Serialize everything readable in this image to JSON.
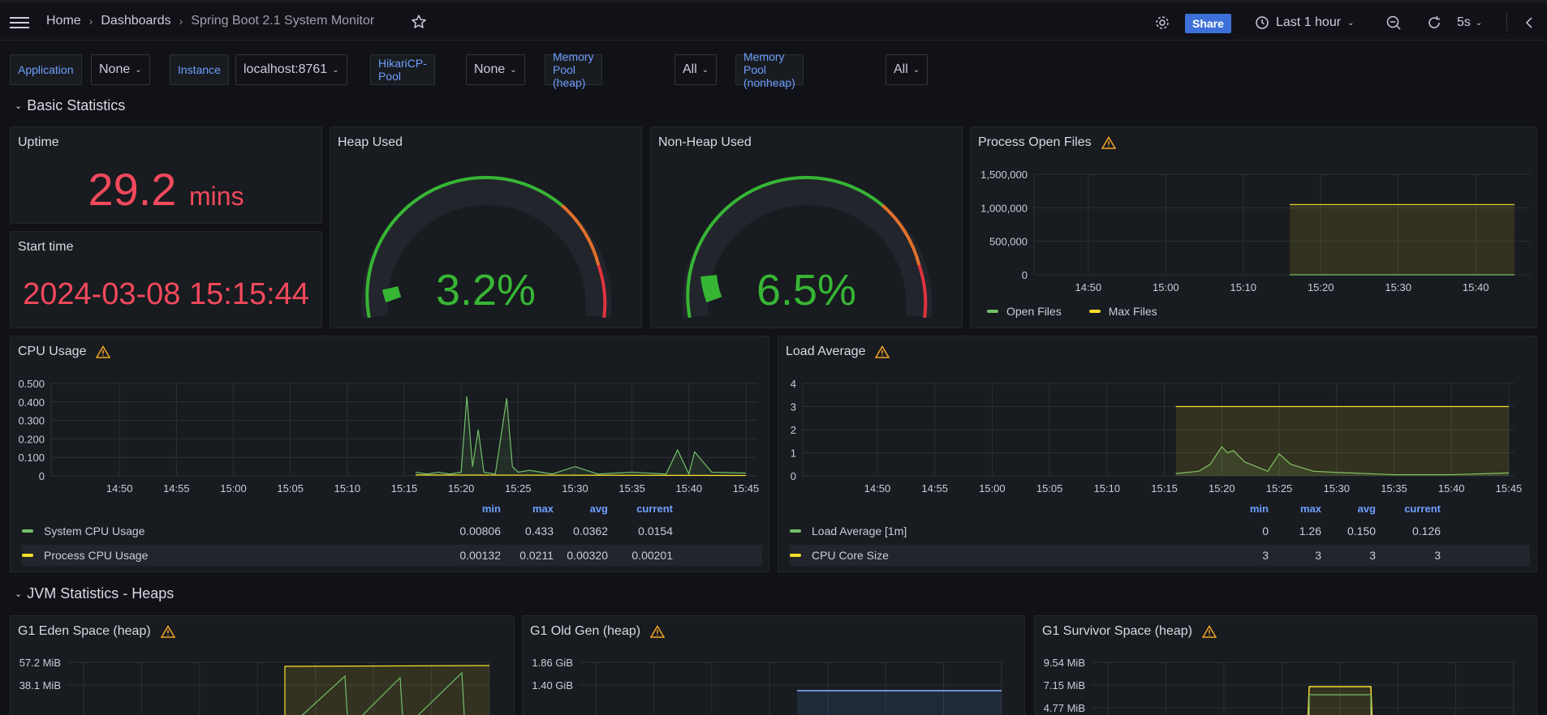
{
  "topbar": {
    "crumbs": [
      "Home",
      "Dashboards",
      "Spring Boot 2.1 System Monitor"
    ],
    "share_label": "Share",
    "time_range": "Last 1 hour",
    "refresh": "5s"
  },
  "variables": [
    {
      "label": "Application",
      "value": "None"
    },
    {
      "label": "Instance",
      "value": "localhost:8761"
    },
    {
      "label": "HikariCP-Pool",
      "value": "None"
    },
    {
      "label": "Memory Pool (heap)",
      "value": "All"
    },
    {
      "label": "Memory Pool (nonheap)",
      "value": "All"
    }
  ],
  "rows": {
    "basic": "Basic Statistics",
    "jvm": "JVM Statistics - Heaps"
  },
  "uptime": {
    "title": "Uptime",
    "value": "29.2",
    "unit": "mins"
  },
  "start_time": {
    "title": "Start time",
    "value": "2024-03-08 15:15:44"
  },
  "heap": {
    "title": "Heap Used",
    "value": "3.2%"
  },
  "nonheap": {
    "title": "Non-Heap Used",
    "value": "6.5%"
  },
  "open_files": {
    "title": "Process Open Files",
    "legend": [
      "Open Files",
      "Max Files"
    ]
  },
  "cpu": {
    "title": "CPU Usage",
    "headers": [
      "min",
      "max",
      "avg",
      "current"
    ],
    "rows": [
      {
        "name": "System CPU Usage",
        "color": "#73bf69",
        "values": [
          "0.00806",
          "0.433",
          "0.0362",
          "0.0154"
        ]
      },
      {
        "name": "Process CPU Usage",
        "color": "#fade2a",
        "values": [
          "0.00132",
          "0.0211",
          "0.00320",
          "0.00201"
        ]
      }
    ]
  },
  "load": {
    "title": "Load Average",
    "headers": [
      "min",
      "max",
      "avg",
      "current"
    ],
    "rows": [
      {
        "name": "Load Average [1m]",
        "color": "#73bf69",
        "values": [
          "0",
          "1.26",
          "0.150",
          "0.126"
        ]
      },
      {
        "name": "CPU Core Size",
        "color": "#fade2a",
        "values": [
          "3",
          "3",
          "3",
          "3"
        ]
      }
    ]
  },
  "heaps": {
    "eden": "G1 Eden Space (heap)",
    "old": "G1 Old Gen (heap)",
    "survivor": "G1 Survivor Space (heap)"
  },
  "chart_data": [
    {
      "type": "line",
      "title": "Process Open Files",
      "x_ticks": [
        "14:50",
        "15:00",
        "15:10",
        "15:20",
        "15:30",
        "15:40"
      ],
      "y_ticks": [
        "1,500,000",
        "1,000,000",
        "500,000",
        "0"
      ],
      "ylim": [
        0,
        1500000
      ],
      "series": [
        {
          "name": "Open Files",
          "x": [
            "15:16",
            "15:45"
          ],
          "y": [
            25,
            25
          ],
          "color": "#73bf69"
        },
        {
          "name": "Max Files",
          "x": [
            "15:16",
            "15:45"
          ],
          "y": [
            1048576,
            1048576
          ],
          "color": "#fade2a"
        }
      ]
    },
    {
      "type": "line",
      "title": "CPU Usage",
      "x_ticks": [
        "14:50",
        "14:55",
        "15:00",
        "15:05",
        "15:10",
        "15:15",
        "15:20",
        "15:25",
        "15:30",
        "15:35",
        "15:40",
        "15:45"
      ],
      "y_ticks": [
        "0.500",
        "0.400",
        "0.300",
        "0.200",
        "0.100",
        "0"
      ],
      "ylim": [
        0,
        0.5
      ],
      "series": [
        {
          "name": "System CPU Usage",
          "color": "#73bf69",
          "x": [
            "15:16",
            "15:17",
            "15:18",
            "15:19",
            "15:20",
            "15:20:30",
            "15:21",
            "15:21:30",
            "15:22",
            "15:23",
            "15:24",
            "15:24:30",
            "15:25",
            "15:26",
            "15:28",
            "15:30",
            "15:32",
            "15:35",
            "15:38",
            "15:39",
            "15:40",
            "15:40:30",
            "15:42",
            "15:45"
          ],
          "y": [
            0.02,
            0.01,
            0.02,
            0.01,
            0.02,
            0.43,
            0.05,
            0.25,
            0.02,
            0.01,
            0.42,
            0.05,
            0.02,
            0.03,
            0.01,
            0.05,
            0.01,
            0.02,
            0.01,
            0.14,
            0.01,
            0.13,
            0.02,
            0.015
          ]
        },
        {
          "name": "Process CPU Usage",
          "color": "#fade2a",
          "x": [
            "15:16",
            "15:45"
          ],
          "y": [
            0.005,
            0.002
          ]
        }
      ]
    },
    {
      "type": "line",
      "title": "Load Average",
      "x_ticks": [
        "14:50",
        "14:55",
        "15:00",
        "15:05",
        "15:10",
        "15:15",
        "15:20",
        "15:25",
        "15:30",
        "15:35",
        "15:40",
        "15:45"
      ],
      "y_ticks": [
        "4",
        "3",
        "2",
        "1",
        "0"
      ],
      "ylim": [
        0,
        4
      ],
      "series": [
        {
          "name": "Load Average [1m]",
          "color": "#73bf69",
          "x": [
            "15:16",
            "15:18",
            "15:19",
            "15:20",
            "15:20:30",
            "15:21",
            "15:22",
            "15:23",
            "15:24",
            "15:25",
            "15:26",
            "15:28",
            "15:30",
            "15:35",
            "15:40",
            "15:45"
          ],
          "y": [
            0.1,
            0.2,
            0.5,
            1.26,
            1.0,
            1.1,
            0.6,
            0.4,
            0.2,
            0.95,
            0.5,
            0.2,
            0.15,
            0.05,
            0.05,
            0.126
          ]
        },
        {
          "name": "CPU Core Size",
          "color": "#fade2a",
          "x": [
            "15:16",
            "15:45"
          ],
          "y": [
            3,
            3
          ]
        }
      ]
    },
    {
      "type": "line",
      "title": "G1 Eden Space (heap)",
      "y_ticks": [
        "57.2 MiB",
        "38.1 MiB"
      ]
    },
    {
      "type": "line",
      "title": "G1 Old Gen (heap)",
      "y_ticks": [
        "1.86 GiB",
        "1.40 GiB"
      ]
    },
    {
      "type": "line",
      "title": "G1 Survivor Space (heap)",
      "y_ticks": [
        "9.54 MiB",
        "7.15 MiB",
        "4.77 MiB"
      ]
    }
  ]
}
